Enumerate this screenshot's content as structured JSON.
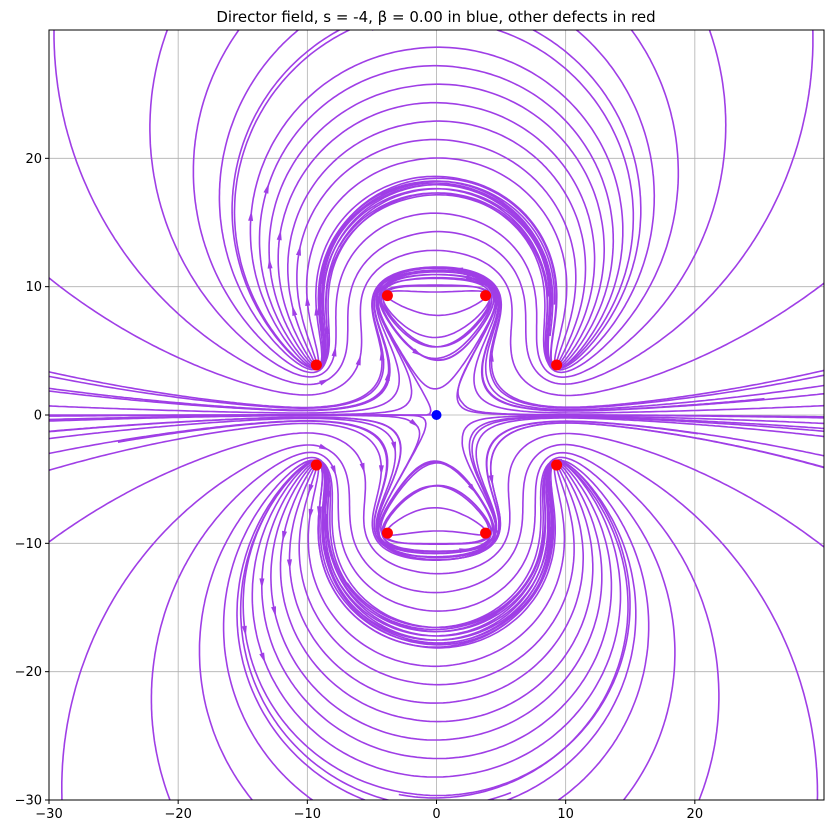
{
  "chart_data": {
    "type": "streamplot",
    "title": "Director field, s = -4, β = 0.00 in blue, other defects in red",
    "xlabel": "",
    "ylabel": "",
    "xlim": [
      -30,
      30
    ],
    "ylim": [
      -30,
      30
    ],
    "x_ticks": [
      -30,
      -20,
      -10,
      0,
      10,
      20
    ],
    "y_ticks": [
      -30,
      -20,
      -10,
      0,
      10,
      20
    ],
    "x_tick_labels": [
      "−30",
      "−20",
      "−10",
      "0",
      "10",
      "20"
    ],
    "y_tick_labels": [
      "−30",
      "−20",
      "−10",
      "0",
      "10",
      "20"
    ],
    "grid": true,
    "colors": {
      "streamline": "#9f3ee6",
      "central_defect": "#0000ff",
      "other_defects": "#ff0000",
      "grid": "#b0b0b0",
      "axes": "#000000"
    },
    "field": {
      "s": -4,
      "beta": 0.0
    },
    "central_defect": {
      "x": 0,
      "y": 0
    },
    "other_defects": [
      {
        "x": -3.8,
        "y": 9.3
      },
      {
        "x": 3.8,
        "y": 9.3
      },
      {
        "x": -9.3,
        "y": 3.9
      },
      {
        "x": 9.3,
        "y": 3.9
      },
      {
        "x": -9.3,
        "y": -3.9
      },
      {
        "x": 9.3,
        "y": -3.9
      },
      {
        "x": -3.8,
        "y": -9.2
      },
      {
        "x": 3.8,
        "y": -9.2
      }
    ]
  }
}
